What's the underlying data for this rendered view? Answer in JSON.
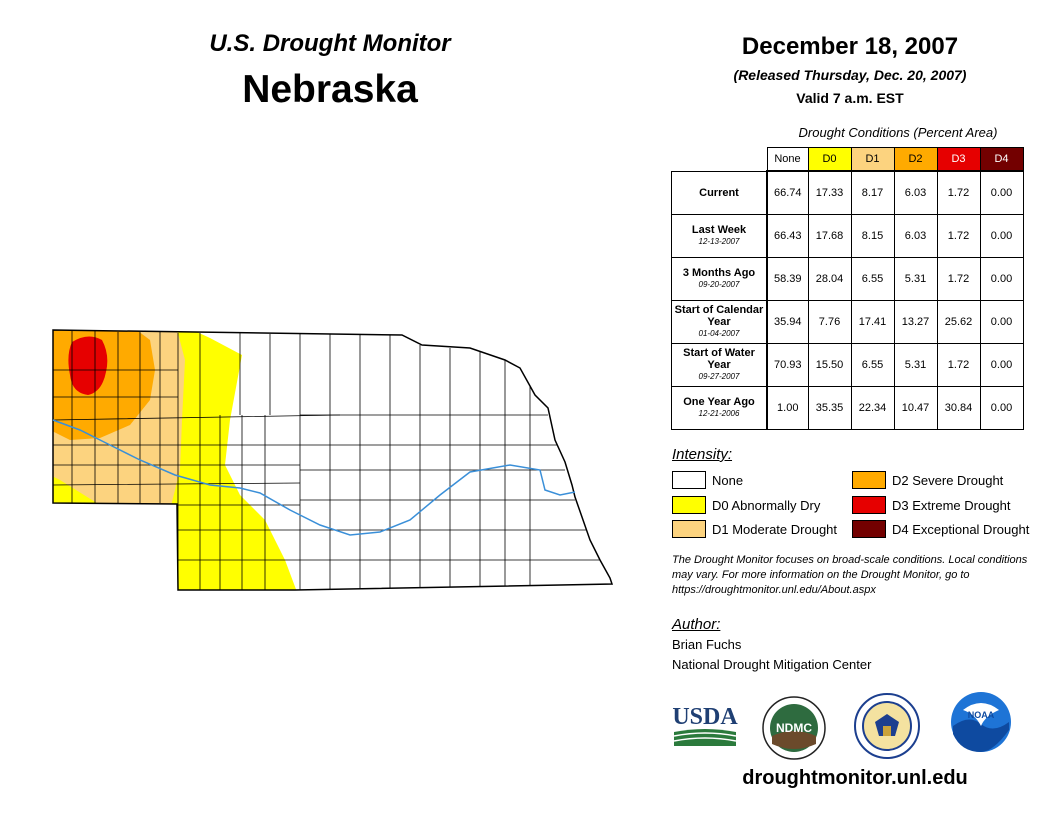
{
  "header": {
    "subtitle": "U.S. Drought Monitor",
    "state": "Nebraska",
    "date": "December 18, 2007",
    "released": "(Released Thursday, Dec. 20, 2007)",
    "valid": "Valid 7 a.m. EST"
  },
  "table": {
    "title": "Drought Conditions (Percent Area)",
    "columns": [
      "None",
      "D0",
      "D1",
      "D2",
      "D3",
      "D4"
    ],
    "column_colors": [
      "#ffffff",
      "#ffff00",
      "#fcd37f",
      "#ffaa00",
      "#e60000",
      "#730000"
    ],
    "rows": [
      {
        "label": "Current",
        "date": "",
        "values": [
          "66.74",
          "17.33",
          "8.17",
          "6.03",
          "1.72",
          "0.00"
        ]
      },
      {
        "label": "Last Week",
        "date": "12-13-2007",
        "values": [
          "66.43",
          "17.68",
          "8.15",
          "6.03",
          "1.72",
          "0.00"
        ]
      },
      {
        "label": "3 Months Ago",
        "date": "09-20-2007",
        "values": [
          "58.39",
          "28.04",
          "6.55",
          "5.31",
          "1.72",
          "0.00"
        ]
      },
      {
        "label": "Start of Calendar Year",
        "date": "01-04-2007",
        "values": [
          "35.94",
          "7.76",
          "17.41",
          "13.27",
          "25.62",
          "0.00"
        ]
      },
      {
        "label": "Start of Water Year",
        "date": "09-27-2007",
        "values": [
          "70.93",
          "15.50",
          "6.55",
          "5.31",
          "1.72",
          "0.00"
        ]
      },
      {
        "label": "One Year Ago",
        "date": "12-21-2006",
        "values": [
          "1.00",
          "35.35",
          "22.34",
          "10.47",
          "30.84",
          "0.00"
        ]
      }
    ]
  },
  "legend": {
    "title": "Intensity:",
    "items": [
      {
        "label": "None",
        "color": "#ffffff"
      },
      {
        "label": "D0 Abnormally Dry",
        "color": "#ffff00"
      },
      {
        "label": "D1 Moderate Drought",
        "color": "#fcd37f"
      },
      {
        "label": "D2 Severe Drought",
        "color": "#ffaa00"
      },
      {
        "label": "D3 Extreme Drought",
        "color": "#e60000"
      },
      {
        "label": "D4 Exceptional Drought",
        "color": "#730000"
      }
    ]
  },
  "note": "The Drought Monitor focuses on broad-scale conditions. Local conditions may vary. For more information on the Drought Monitor, go to https://droughtmonitor.unl.edu/About.aspx",
  "author": {
    "heading": "Author:",
    "name": "Brian Fuchs",
    "org": "National Drought Mitigation Center"
  },
  "logos": {
    "usda": "USDA",
    "ndmc": "NDMC",
    "noaa": "NOAA"
  },
  "url": "droughtmonitor.unl.edu",
  "map": {
    "river_color": "#3a8fd8",
    "border_color": "#000000"
  }
}
